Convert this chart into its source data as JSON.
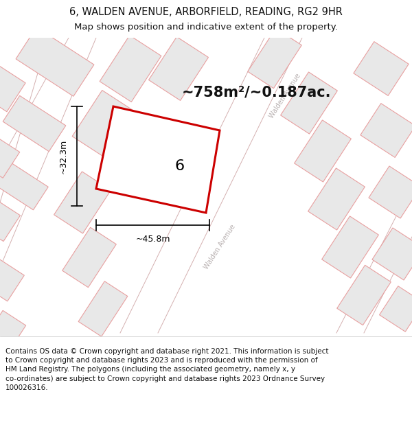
{
  "title_line1": "6, WALDEN AVENUE, ARBORFIELD, READING, RG2 9HR",
  "title_line2": "Map shows position and indicative extent of the property.",
  "area_text": "~758m²/~0.187ac.",
  "label_width": "~45.8m",
  "label_height": "~32.3m",
  "plot_number": "6",
  "footer_text": "Contains OS data © Crown copyright and database right 2021. This information is subject\nto Crown copyright and database rights 2023 and is reproduced with the permission of\nHM Land Registry. The polygons (including the associated geometry, namely x, y\nco-ordinates) are subject to Crown copyright and database rights 2023 Ordnance Survey\n100026316.",
  "bg_color": "#ffffff",
  "building_fill": "#e8e8e8",
  "building_outline": "#e8a0a0",
  "plot_outline_color": "#d06060",
  "highlight_outline": "#cc0000",
  "street_label_color": "#b8b0b0",
  "white_bg": "#ffffff",
  "title_fontsize": 10.5,
  "subtitle_fontsize": 9.5,
  "area_fontsize": 15,
  "plot_num_fontsize": 16,
  "footer_fontsize": 7.5,
  "street_fontsize": 7.0
}
